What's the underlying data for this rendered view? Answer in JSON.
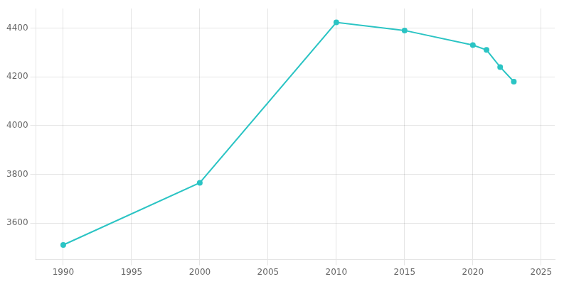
{
  "chart_data": {
    "type": "line",
    "x": [
      1990,
      2000,
      2010,
      2015,
      2020,
      2021,
      2022,
      2023
    ],
    "values": [
      3510,
      3765,
      4423,
      4390,
      4330,
      4310,
      4240,
      4180
    ],
    "color": "#2bc4c4",
    "marker": "circle",
    "xlim": [
      1988,
      2026
    ],
    "ylim": [
      3450,
      4480
    ],
    "xticks": [
      1990,
      1995,
      2000,
      2005,
      2010,
      2015,
      2020,
      2025
    ],
    "yticks": [
      3600,
      3800,
      4000,
      4200,
      4400
    ],
    "grid": true
  }
}
